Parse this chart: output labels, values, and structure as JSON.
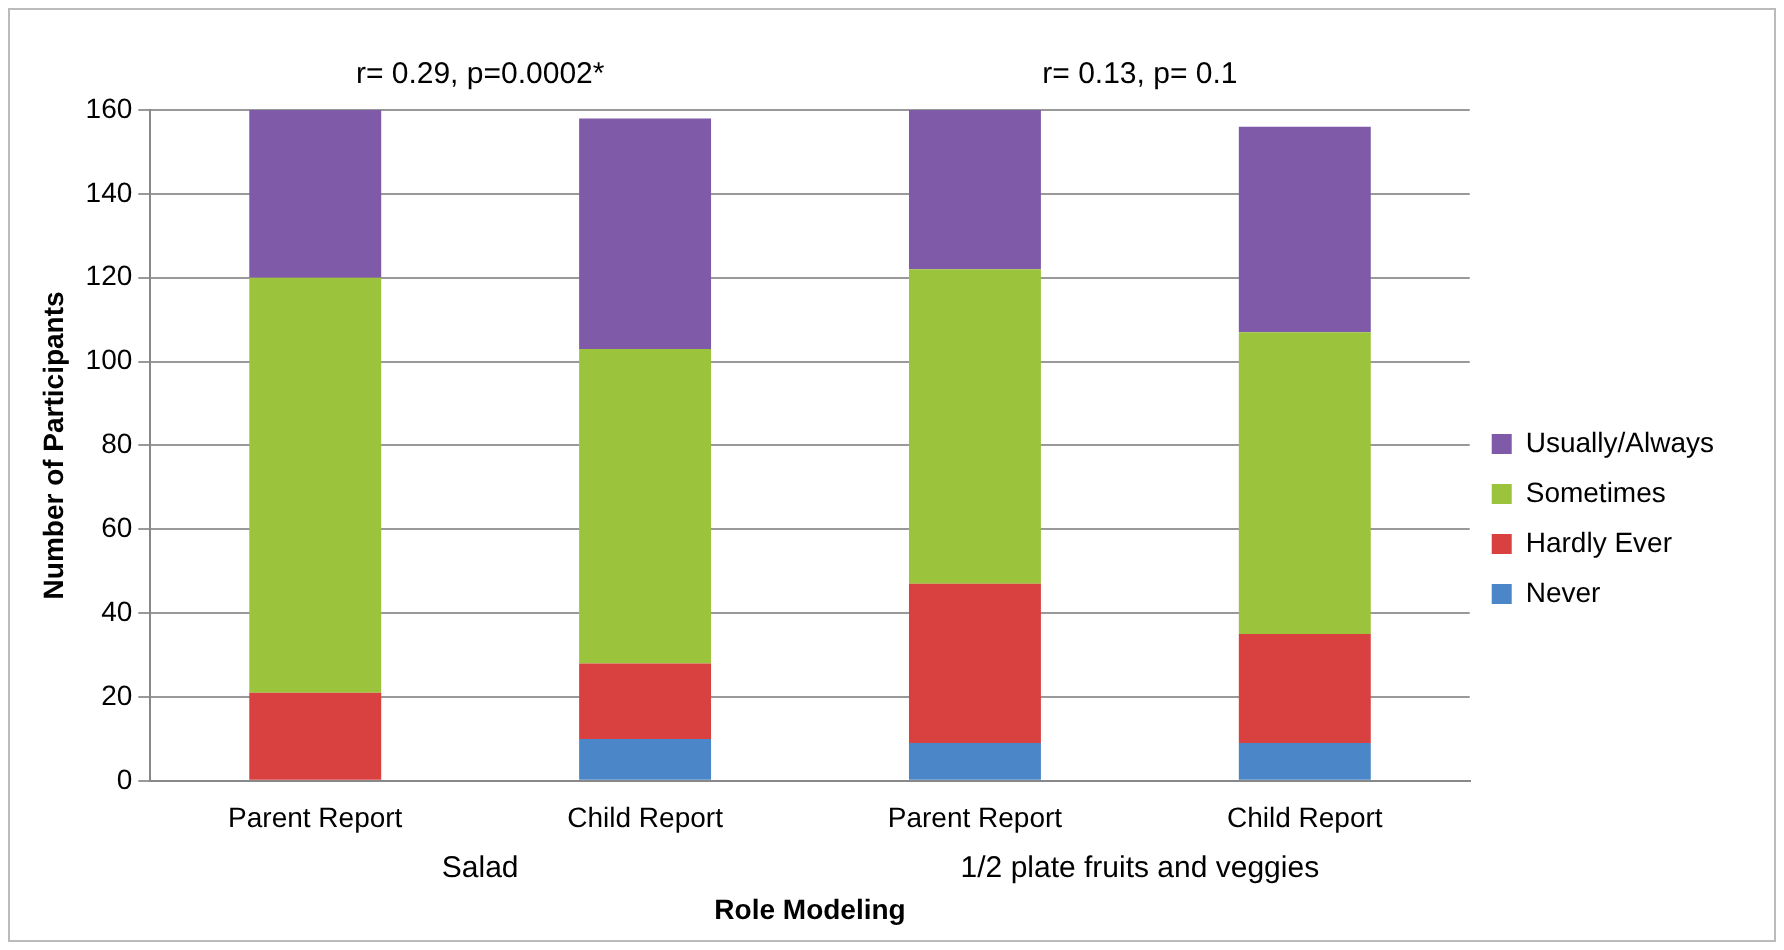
{
  "chart_data": {
    "type": "bar",
    "stacked": true,
    "categories": [
      "Parent Report",
      "Child Report",
      "Parent Report",
      "Child Report"
    ],
    "series": [
      {
        "name": "Never",
        "color": "#4a86c8",
        "values": [
          0,
          10,
          9,
          9
        ]
      },
      {
        "name": "Hardly Ever",
        "color": "#d94040",
        "values": [
          21,
          18,
          38,
          26
        ]
      },
      {
        "name": "Sometimes",
        "color": "#9bc43c",
        "values": [
          99,
          75,
          75,
          72
        ]
      },
      {
        "name": "Usually/Always",
        "color": "#7e5aa8",
        "values": [
          40,
          55,
          38,
          49
        ]
      }
    ],
    "xlabel": "Role Modeling",
    "ylabel": "Number of Participants",
    "ylim": [
      0,
      160
    ],
    "yticks": [
      0,
      20,
      40,
      60,
      80,
      100,
      120,
      140,
      160
    ],
    "grid": "y",
    "legend": "right",
    "annotations": [
      "r= 0.29, p=0.0002*",
      "r= 0.13, p= 0.1",
      "Salad",
      "1/2 plate fruits and veggies"
    ]
  }
}
